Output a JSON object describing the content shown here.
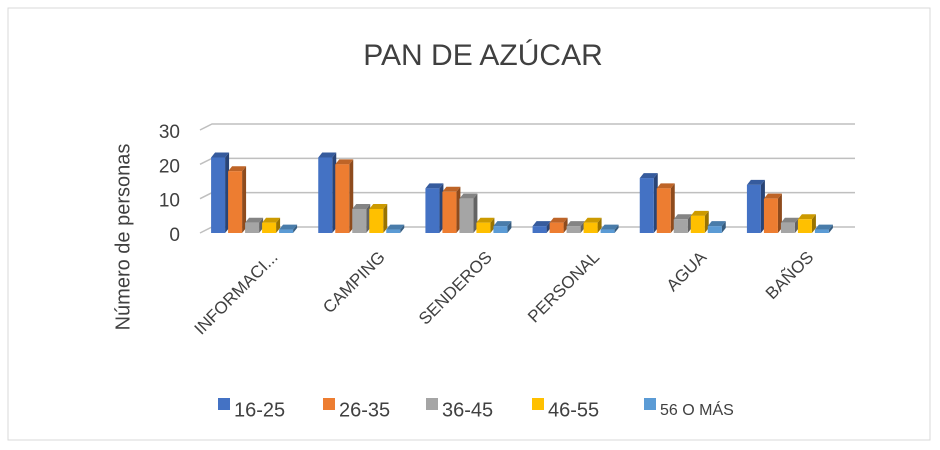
{
  "chart_data": {
    "type": "bar3d",
    "title": "PAN DE AZÚCAR",
    "y_label": "Número de personas",
    "categories": [
      "INFORMACI...",
      "CAMPING",
      "SENDEROS",
      "PERSONAL",
      "AGUA",
      "BAÑOS"
    ],
    "series": [
      {
        "name": "16-25",
        "color": "#4472c4",
        "values": [
          22,
          22,
          13,
          2,
          16,
          14
        ]
      },
      {
        "name": "26-35",
        "color": "#ed7d31",
        "values": [
          18,
          20,
          12,
          3,
          13,
          10
        ]
      },
      {
        "name": "36-45",
        "color": "#a5a5a5",
        "values": [
          3,
          7,
          10,
          2,
          4,
          3
        ]
      },
      {
        "name": "46-55",
        "color": "#ffc000",
        "values": [
          3,
          7,
          3,
          3,
          5,
          4
        ]
      },
      {
        "name": "56 O MÁS",
        "color": "#5b9bd5",
        "values": [
          1,
          1,
          2,
          1,
          2,
          1
        ]
      }
    ],
    "ylim": [
      0,
      30
    ],
    "yticks": [
      0,
      10,
      20,
      30
    ],
    "grid": true,
    "legend": "bottom"
  }
}
